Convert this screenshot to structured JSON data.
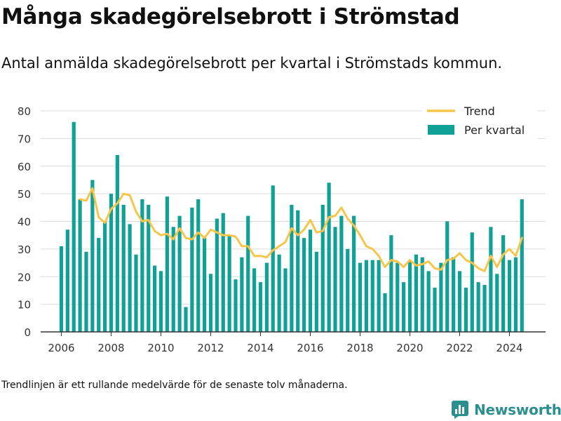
{
  "title": "Många skadegörelsebrott i Strömstad",
  "subtitle": "Antal anmälda skadegörelsebrott per kvartal i Strömstads kommun.",
  "footnote": "Trendlinjen är ett rullande medelvärde för de senaste tolv månaderna.",
  "brand": {
    "name": "Newsworthy",
    "icon": "bar-chart-logo-icon",
    "color": "#2b8f8f"
  },
  "chart_data": {
    "type": "bar",
    "title": "",
    "xlabel": "",
    "ylabel": "",
    "ylim": [
      0,
      80
    ],
    "yticks": [
      0,
      10,
      20,
      30,
      40,
      50,
      60,
      70,
      80
    ],
    "xticks": [
      2006,
      2008,
      2010,
      2012,
      2014,
      2016,
      2018,
      2020,
      2022,
      2024
    ],
    "grid": true,
    "legend_position": "top-right",
    "colors": {
      "bars": "#0fa096",
      "trend": "#f6c54a"
    },
    "series": [
      {
        "name": "Per kvartal",
        "type": "bar",
        "x": [
          2006.0,
          2006.25,
          2006.5,
          2006.75,
          2007.0,
          2007.25,
          2007.5,
          2007.75,
          2008.0,
          2008.25,
          2008.5,
          2008.75,
          2009.0,
          2009.25,
          2009.5,
          2009.75,
          2010.0,
          2010.25,
          2010.5,
          2010.75,
          2011.0,
          2011.25,
          2011.5,
          2011.75,
          2012.0,
          2012.25,
          2012.5,
          2012.75,
          2013.0,
          2013.25,
          2013.5,
          2013.75,
          2014.0,
          2014.25,
          2014.5,
          2014.75,
          2015.0,
          2015.25,
          2015.5,
          2015.75,
          2016.0,
          2016.25,
          2016.5,
          2016.75,
          2017.0,
          2017.25,
          2017.5,
          2017.75,
          2018.0,
          2018.25,
          2018.5,
          2018.75,
          2019.0,
          2019.25,
          2019.5,
          2019.75,
          2020.0,
          2020.25,
          2020.5,
          2020.75,
          2021.0,
          2021.25,
          2021.5,
          2021.75,
          2022.0,
          2022.25,
          2022.5,
          2022.75,
          2023.0,
          2023.25,
          2023.5,
          2023.75,
          2024.0,
          2024.25,
          2024.5
        ],
        "values": [
          31,
          37,
          76,
          48,
          29,
          55,
          34,
          40,
          50,
          64,
          46,
          39,
          28,
          48,
          46,
          24,
          22,
          49,
          38,
          42,
          9,
          45,
          48,
          34,
          21,
          41,
          43,
          35,
          19,
          27,
          42,
          23,
          18,
          25,
          53,
          28,
          23,
          46,
          44,
          34,
          37,
          29,
          46,
          54,
          38,
          42,
          30,
          42,
          25,
          26,
          26,
          26,
          14,
          35,
          25,
          18,
          26,
          28,
          27,
          22,
          16,
          25,
          40,
          27,
          22,
          16,
          36,
          18,
          17,
          38,
          21,
          35,
          26,
          27,
          48
        ]
      },
      {
        "name": "Trend",
        "type": "line",
        "x": [
          2006.75,
          2007.0,
          2007.25,
          2007.5,
          2007.75,
          2008.0,
          2008.25,
          2008.5,
          2008.75,
          2009.0,
          2009.25,
          2009.5,
          2009.75,
          2010.0,
          2010.25,
          2010.5,
          2010.75,
          2011.0,
          2011.25,
          2011.5,
          2011.75,
          2012.0,
          2012.25,
          2012.5,
          2012.75,
          2013.0,
          2013.25,
          2013.5,
          2013.75,
          2014.0,
          2014.25,
          2014.5,
          2014.75,
          2015.0,
          2015.25,
          2015.5,
          2015.75,
          2016.0,
          2016.25,
          2016.5,
          2016.75,
          2017.0,
          2017.25,
          2017.5,
          2017.75,
          2018.0,
          2018.25,
          2018.5,
          2018.75,
          2019.0,
          2019.25,
          2019.5,
          2019.75,
          2020.0,
          2020.25,
          2020.5,
          2020.75,
          2021.0,
          2021.25,
          2021.5,
          2021.75,
          2022.0,
          2022.25,
          2022.5,
          2022.75,
          2023.0,
          2023.25,
          2023.5,
          2023.75,
          2024.0,
          2024.25,
          2024.5
        ],
        "values": [
          48,
          47.5,
          52,
          41.5,
          39.5,
          44.5,
          46.5,
          50,
          49.5,
          43.5,
          40,
          40.5,
          36.5,
          35,
          35.5,
          33.5,
          37.5,
          34,
          33.5,
          36,
          34,
          37,
          36,
          35,
          35,
          34.5,
          31,
          31,
          27.5,
          27.5,
          27,
          29.5,
          31,
          32.5,
          37.5,
          35,
          37,
          40.5,
          36,
          36.5,
          41.5,
          42,
          45,
          41,
          38.5,
          35,
          31,
          30,
          27.5,
          23.5,
          26,
          25.5,
          23.5,
          26,
          24,
          24.5,
          25.5,
          23,
          22.5,
          26,
          26.5,
          28.5,
          26,
          25,
          23,
          22,
          27.5,
          23.5,
          28,
          30,
          27.5,
          34
        ]
      }
    ]
  }
}
